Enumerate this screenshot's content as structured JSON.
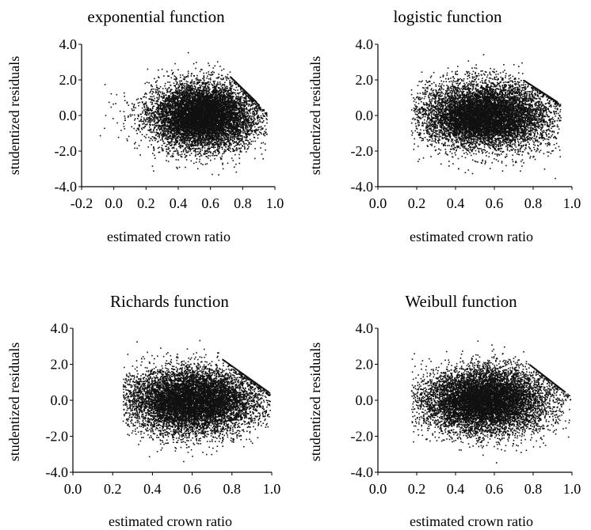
{
  "chart_data": [
    {
      "type": "scatter",
      "title": "exponential function",
      "xlabel": "estimated crown ratio",
      "ylabel": "studentized residuals",
      "xlim": [
        -0.2,
        1.0
      ],
      "ylim": [
        -4.0,
        4.0
      ],
      "xticks": [
        "-0.2",
        "0.0",
        "0.2",
        "0.4",
        "0.6",
        "0.8",
        "1.0"
      ],
      "yticks": [
        "4.0",
        "2.0",
        "0.0",
        "-2.0",
        "-4.0"
      ],
      "grid": false,
      "legend": "none",
      "point_color": "#111111",
      "distribution": {
        "x_range": [
          -0.1,
          0.95
        ],
        "x_center": 0.55,
        "residual_mean": 0.0,
        "residual_sd": 0.9,
        "upper_edge_line": {
          "x": [
            0.72,
            0.88
          ],
          "y": [
            2.2,
            0.8
          ]
        },
        "n_points": 9000
      }
    },
    {
      "type": "scatter",
      "title": "logistic function",
      "xlabel": "estimated crown ratio",
      "ylabel": "studentized residuals",
      "xlim": [
        0.0,
        1.0
      ],
      "ylim": [
        -4.0,
        4.0
      ],
      "xticks": [
        "0.0",
        "0.2",
        "0.4",
        "0.6",
        "0.8",
        "1.0"
      ],
      "yticks": [
        "4.0",
        "2.0",
        "0.0",
        "-2.0",
        "-4.0"
      ],
      "grid": false,
      "legend": "none",
      "point_color": "#111111",
      "distribution": {
        "x_range": [
          0.17,
          0.94
        ],
        "x_center": 0.55,
        "residual_mean": 0.0,
        "residual_sd": 0.9,
        "upper_edge_line": {
          "x": [
            0.75,
            0.92
          ],
          "y": [
            2.0,
            0.8
          ]
        },
        "n_points": 9000
      }
    },
    {
      "type": "scatter",
      "title": "Richards function",
      "xlabel": "estimated crown ratio",
      "ylabel": "studentized residuals",
      "xlim": [
        0.0,
        1.0
      ],
      "ylim": [
        -4.0,
        4.0
      ],
      "xticks": [
        "0.0",
        "0.2",
        "0.4",
        "0.6",
        "0.8",
        "1.0"
      ],
      "yticks": [
        "4.0",
        "2.0",
        "0.0",
        "-2.0",
        "-4.0"
      ],
      "grid": false,
      "legend": "none",
      "point_color": "#111111",
      "distribution": {
        "x_range": [
          0.25,
          0.99
        ],
        "x_center": 0.6,
        "residual_mean": 0.0,
        "residual_sd": 0.9,
        "upper_edge_line": {
          "x": [
            0.75,
            0.98
          ],
          "y": [
            2.3,
            0.5
          ]
        },
        "n_points": 9000
      }
    },
    {
      "type": "scatter",
      "title": "Weibull function",
      "xlabel": "estimated crown ratio",
      "ylabel": "studentized residuals",
      "xlim": [
        0.0,
        1.0
      ],
      "ylim": [
        -4.0,
        4.0
      ],
      "xticks": [
        "0.0",
        "0.2",
        "0.4",
        "0.6",
        "0.8",
        "1.0"
      ],
      "yticks": [
        "4.0",
        "2.0",
        "0.0",
        "-2.0",
        "-4.0"
      ],
      "grid": false,
      "legend": "none",
      "point_color": "#111111",
      "distribution": {
        "x_range": [
          0.17,
          0.99
        ],
        "x_center": 0.55,
        "residual_mean": 0.0,
        "residual_sd": 0.9,
        "upper_edge_line": {
          "x": [
            0.78,
            0.96
          ],
          "y": [
            2.0,
            0.5
          ]
        },
        "n_points": 9000
      }
    }
  ]
}
